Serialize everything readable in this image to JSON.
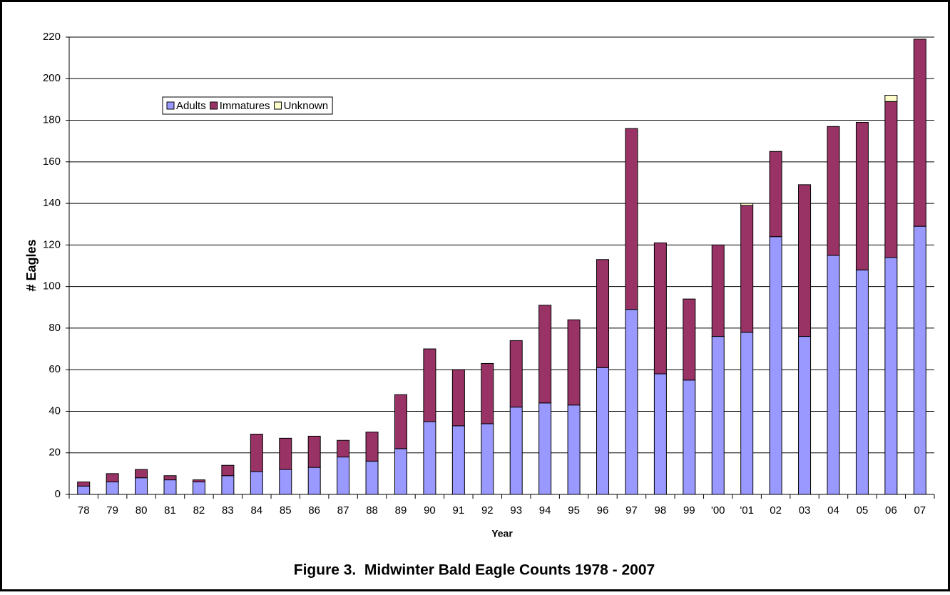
{
  "chart_data": {
    "type": "stacked_bar",
    "title": "Figure 3.  Midwinter Bald Eagle Counts 1978 - 2007",
    "x_label": "Year",
    "y_label": "# Eagles",
    "categories": [
      "78",
      "79",
      "80",
      "81",
      "82",
      "83",
      "84",
      "85",
      "86",
      "87",
      "88",
      "89",
      "90",
      "91",
      "92",
      "93",
      "94",
      "95",
      "96",
      "97",
      "98",
      "99",
      "'00",
      "'01",
      "02",
      "03",
      "04",
      "05",
      "06",
      "07"
    ],
    "series": [
      {
        "name": "Adults",
        "color": "#9999ff",
        "values": [
          4,
          6,
          8,
          7,
          6,
          9,
          11,
          12,
          13,
          18,
          16,
          22,
          35,
          33,
          34,
          42,
          44,
          43,
          61,
          89,
          58,
          55,
          76,
          78,
          124,
          76,
          115,
          108,
          114,
          129
        ]
      },
      {
        "name": "Immatures",
        "color": "#993366",
        "values": [
          2,
          4,
          4,
          2,
          1,
          5,
          18,
          15,
          15,
          8,
          14,
          26,
          35,
          27,
          29,
          32,
          47,
          41,
          52,
          87,
          63,
          39,
          44,
          61,
          41,
          73,
          62,
          71,
          75,
          90
        ]
      },
      {
        "name": "Unknown",
        "color": "#ffffcc",
        "values": [
          0,
          0,
          0,
          0,
          0,
          0,
          0,
          0,
          0,
          0,
          0,
          0,
          0,
          0,
          0,
          0,
          0,
          0,
          0,
          0,
          0,
          0,
          0,
          1,
          0,
          0,
          0,
          0,
          3,
          0
        ]
      }
    ],
    "ylim": [
      0,
      220
    ],
    "yticks": [
      0,
      20,
      40,
      60,
      80,
      100,
      120,
      140,
      160,
      180,
      200,
      220
    ],
    "grid": true,
    "legend": "upper left"
  }
}
